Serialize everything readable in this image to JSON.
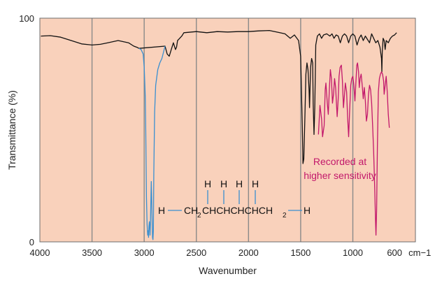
{
  "chart_data": {
    "type": "line",
    "xlabel": "Wavenumber",
    "ylabel": "Transmittance (%)",
    "x_unit": "cm−1",
    "xlim": [
      4000,
      400
    ],
    "ylim": [
      0,
      100
    ],
    "x_ticks": [
      4000,
      3500,
      3000,
      2500,
      2000,
      1500,
      1000,
      600
    ],
    "x_tick_labels": [
      "4000",
      "3500",
      "3000",
      "2500",
      "2000",
      "1500",
      "1000",
      "600"
    ],
    "y_tick_labels": [
      "0",
      "100"
    ],
    "y_ticks": [
      0,
      100
    ],
    "gridlines_x": [
      3500,
      3000,
      2500,
      2000,
      1500,
      1000
    ],
    "series": [
      {
        "color": "#111111",
        "points": [
          [
            3990,
            92
          ],
          [
            3900,
            92.2
          ],
          [
            3800,
            91.5
          ],
          [
            3700,
            90
          ],
          [
            3600,
            88.5
          ],
          [
            3500,
            88
          ],
          [
            3420,
            88.3
          ],
          [
            3350,
            89
          ],
          [
            3250,
            90
          ],
          [
            3150,
            89
          ],
          [
            3100,
            87.5
          ],
          [
            3070,
            87
          ],
          [
            3050,
            86.5
          ],
          [
            2800,
            87.5
          ],
          [
            2780,
            84
          ],
          [
            2760,
            83
          ],
          [
            2740,
            86
          ],
          [
            2720,
            89
          ],
          [
            2700,
            86
          ],
          [
            2690,
            87
          ],
          [
            2680,
            90
          ],
          [
            2660,
            91
          ],
          [
            2640,
            92
          ],
          [
            2620,
            93.5
          ],
          [
            2500,
            94
          ],
          [
            2400,
            93.5
          ],
          [
            2300,
            94
          ],
          [
            2200,
            93.8
          ],
          [
            2100,
            94
          ],
          [
            2000,
            94
          ],
          [
            1900,
            94.3
          ],
          [
            1800,
            94.5
          ],
          [
            1700,
            93.5
          ],
          [
            1650,
            93
          ],
          [
            1600,
            91
          ],
          [
            1560,
            92.5
          ],
          [
            1520,
            90
          ],
          [
            1500,
            83
          ],
          [
            1485,
            52
          ],
          [
            1478,
            35
          ],
          [
            1470,
            37
          ],
          [
            1460,
            55
          ],
          [
            1450,
            75
          ],
          [
            1440,
            80
          ],
          [
            1430,
            77
          ],
          [
            1420,
            68
          ],
          [
            1415,
            60
          ],
          [
            1405,
            78
          ],
          [
            1395,
            82
          ],
          [
            1385,
            80
          ],
          [
            1380,
            62
          ],
          [
            1372,
            48
          ],
          [
            1365,
            60
          ],
          [
            1355,
            88
          ],
          [
            1340,
            92
          ],
          [
            1320,
            93
          ],
          [
            1300,
            91
          ],
          [
            1280,
            92.5
          ],
          [
            1250,
            93
          ],
          [
            1220,
            92
          ],
          [
            1200,
            93
          ],
          [
            1180,
            91
          ],
          [
            1160,
            92.5
          ],
          [
            1140,
            92
          ],
          [
            1120,
            89
          ],
          [
            1100,
            92
          ],
          [
            1080,
            93
          ],
          [
            1060,
            92
          ],
          [
            1040,
            89
          ],
          [
            1020,
            92
          ],
          [
            1000,
            93
          ],
          [
            980,
            92
          ],
          [
            960,
            88
          ],
          [
            940,
            91
          ],
          [
            920,
            92.5
          ],
          [
            900,
            90
          ],
          [
            880,
            92
          ],
          [
            860,
            90.5
          ],
          [
            840,
            89
          ],
          [
            820,
            93
          ],
          [
            800,
            91
          ],
          [
            780,
            89
          ],
          [
            760,
            90
          ],
          [
            740,
            87
          ],
          [
            725,
            82
          ],
          [
            722,
            76
          ],
          [
            718,
            85
          ],
          [
            710,
            91
          ],
          [
            700,
            90
          ],
          [
            690,
            86
          ],
          [
            680,
            90
          ],
          [
            660,
            89
          ],
          [
            640,
            91
          ],
          [
            620,
            92
          ],
          [
            600,
            92.5
          ],
          [
            580,
            93.5
          ]
        ]
      },
      {
        "color": "#3a8fd0",
        "points": [
          [
            3050,
            86.5
          ],
          [
            3030,
            86
          ],
          [
            3010,
            84
          ],
          [
            3000,
            78
          ],
          [
            2990,
            65
          ],
          [
            2985,
            50
          ],
          [
            2978,
            20
          ],
          [
            2972,
            8
          ],
          [
            2966,
            3
          ],
          [
            2962,
            5
          ],
          [
            2958,
            2
          ],
          [
            2954,
            7
          ],
          [
            2950,
            9
          ],
          [
            2946,
            6
          ],
          [
            2944,
            3
          ],
          [
            2940,
            8
          ],
          [
            2932,
            27
          ],
          [
            2928,
            20
          ],
          [
            2924,
            10
          ],
          [
            2920,
            2
          ],
          [
            2916,
            1
          ],
          [
            2912,
            5
          ],
          [
            2908,
            30
          ],
          [
            2900,
            58
          ],
          [
            2890,
            70
          ],
          [
            2870,
            77
          ],
          [
            2850,
            80
          ],
          [
            2830,
            82
          ],
          [
            2800,
            87.5
          ]
        ]
      },
      {
        "color": "#c2186b",
        "points": [
          [
            1330,
            48
          ],
          [
            1322,
            55
          ],
          [
            1315,
            61
          ],
          [
            1300,
            55
          ],
          [
            1290,
            47
          ],
          [
            1275,
            52
          ],
          [
            1265,
            68
          ],
          [
            1258,
            71
          ],
          [
            1245,
            62
          ],
          [
            1235,
            57
          ],
          [
            1225,
            68
          ],
          [
            1215,
            77
          ],
          [
            1205,
            73
          ],
          [
            1195,
            62
          ],
          [
            1185,
            66
          ],
          [
            1175,
            73
          ],
          [
            1165,
            69
          ],
          [
            1150,
            56
          ],
          [
            1140,
            64
          ],
          [
            1132,
            74
          ],
          [
            1122,
            78
          ],
          [
            1110,
            79
          ],
          [
            1100,
            72
          ],
          [
            1090,
            60
          ],
          [
            1080,
            66
          ],
          [
            1072,
            71
          ],
          [
            1060,
            67
          ],
          [
            1050,
            56
          ],
          [
            1040,
            47
          ],
          [
            1030,
            59
          ],
          [
            1020,
            70
          ],
          [
            1010,
            73
          ],
          [
            1000,
            74
          ],
          [
            990,
            70
          ],
          [
            980,
            63
          ],
          [
            970,
            72
          ],
          [
            962,
            79
          ],
          [
            955,
            80
          ],
          [
            945,
            76
          ],
          [
            938,
            69
          ],
          [
            930,
            73
          ],
          [
            920,
            75
          ],
          [
            910,
            70
          ],
          [
            900,
            64
          ],
          [
            890,
            69
          ],
          [
            880,
            63
          ],
          [
            870,
            54
          ],
          [
            860,
            57
          ],
          [
            850,
            66
          ],
          [
            840,
            70
          ],
          [
            830,
            68
          ],
          [
            820,
            62
          ],
          [
            810,
            52
          ],
          [
            800,
            40
          ],
          [
            790,
            24
          ],
          [
            782,
            9
          ],
          [
            778,
            3
          ],
          [
            772,
            14
          ],
          [
            765,
            42
          ],
          [
            755,
            67
          ],
          [
            745,
            73
          ],
          [
            735,
            75
          ],
          [
            725,
            76
          ],
          [
            715,
            75
          ],
          [
            705,
            72
          ],
          [
            700,
            66
          ],
          [
            690,
            70
          ],
          [
            680,
            74
          ],
          [
            670,
            67
          ],
          [
            660,
            57
          ],
          [
            650,
            51
          ]
        ]
      }
    ],
    "annotations": {
      "sensitivity_line1": "Recorded at",
      "sensitivity_line2": "higher sensitivity"
    },
    "structure": {
      "h_top": "H",
      "left_h": "H",
      "right_h": "H",
      "ch2_a": "CH",
      "sub_a": "2",
      "chain": "CHCHCHCHCH",
      "sub_b": "2"
    },
    "colors": {
      "background": "#f9d1bb",
      "frame": "#6d6d6d",
      "grid": "#8a8a8a",
      "main": "#111111",
      "high_freq": "#3a8fd0",
      "high_sensitivity": "#c2186b",
      "bond": "#3a8fd0"
    }
  }
}
